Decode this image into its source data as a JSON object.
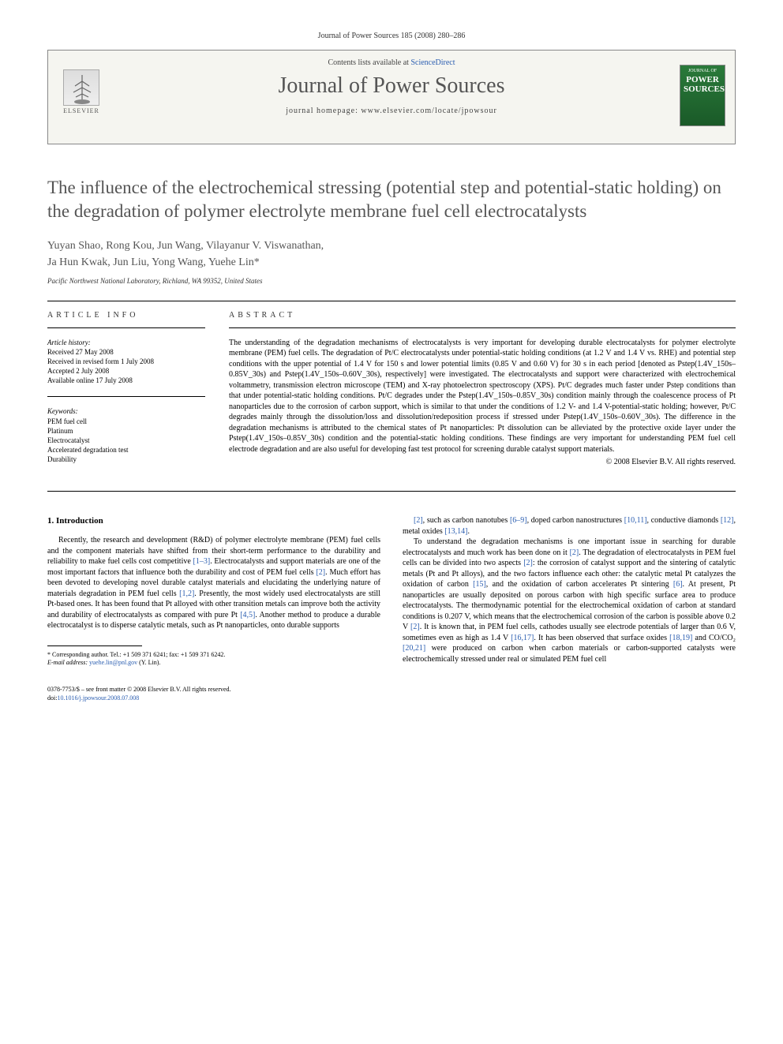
{
  "header": {
    "citation": "Journal of Power Sources 185 (2008) 280–286",
    "contents_prefix": "Contents lists available at ",
    "contents_link": "ScienceDirect",
    "journal_title": "Journal of Power Sources",
    "homepage_label": "journal homepage: www.elsevier.com/locate/jpowsour",
    "publisher_name": "ELSEVIER",
    "cover_label_top": "JOURNAL OF",
    "cover_label_main": "POWER SOURCES"
  },
  "article": {
    "title": "The influence of the electrochemical stressing (potential step and potential-static holding) on the degradation of polymer electrolyte membrane fuel cell electrocatalysts",
    "authors_line1": "Yuyan Shao, Rong Kou, Jun Wang, Vilayanur V. Viswanathan,",
    "authors_line2": "Ja Hun Kwak, Jun Liu, Yong Wang, Yuehe Lin*",
    "affiliation": "Pacific Northwest National Laboratory, Richland, WA 99352, United States"
  },
  "info": {
    "heading": "ARTICLE INFO",
    "history_label": "Article history:",
    "history": [
      "Received 27 May 2008",
      "Received in revised form 1 July 2008",
      "Accepted 2 July 2008",
      "Available online 17 July 2008"
    ],
    "keywords_label": "Keywords:",
    "keywords": [
      "PEM fuel cell",
      "Platinum",
      "Electrocatalyst",
      "Accelerated degradation test",
      "Durability"
    ]
  },
  "abstract": {
    "heading": "ABSTRACT",
    "text": "The understanding of the degradation mechanisms of electrocatalysts is very important for developing durable electrocatalysts for polymer electrolyte membrane (PEM) fuel cells. The degradation of Pt/C electrocatalysts under potential-static holding conditions (at 1.2 V and 1.4 V vs. RHE) and potential step conditions with the upper potential of 1.4 V for 150 s and lower potential limits (0.85 V and 0.60 V) for 30 s in each period [denoted as Pstep(1.4V_150s–0.85V_30s) and Pstep(1.4V_150s–0.60V_30s), respectively] were investigated. The electrocatalysts and support were characterized with electrochemical voltammetry, transmission electron microscope (TEM) and X-ray photoelectron spectroscopy (XPS). Pt/C degrades much faster under Pstep conditions than that under potential-static holding conditions. Pt/C degrades under the Pstep(1.4V_150s–0.85V_30s) condition mainly through the coalescence process of Pt nanoparticles due to the corrosion of carbon support, which is similar to that under the conditions of 1.2 V- and 1.4 V-potential-static holding; however, Pt/C degrades mainly through the dissolution/loss and dissolution/redeposition process if stressed under Pstep(1.4V_150s–0.60V_30s). The difference in the degradation mechanisms is attributed to the chemical states of Pt nanoparticles: Pt dissolution can be alleviated by the protective oxide layer under the Pstep(1.4V_150s–0.85V_30s) condition and the potential-static holding conditions. These findings are very important for understanding PEM fuel cell electrode degradation and are also useful for developing fast test protocol for screening durable catalyst support materials.",
    "copyright": "© 2008 Elsevier B.V. All rights reserved."
  },
  "body": {
    "section_heading": "1. Introduction",
    "left_paragraph": "Recently, the research and development (R&D) of polymer electrolyte membrane (PEM) fuel cells and the component materials have shifted from their short-term performance to the durability and reliability to make fuel cells cost competitive [1–3]. Electrocatalysts and support materials are one of the most important factors that influence both the durability and cost of PEM fuel cells [2]. Much effort has been devoted to developing novel durable catalyst materials and elucidating the underlying nature of materials degradation in PEM fuel cells [1,2]. Presently, the most widely used electrocatalysts are still Pt-based ones. It has been found that Pt alloyed with other transition metals can improve both the activity and durability of electrocatalysts as compared with pure Pt [4,5]. Another method to produce a durable electrocatalyst is to disperse catalytic metals, such as Pt nanoparticles, onto durable supports",
    "right_p1": "[2], such as carbon nanotubes [6–9], doped carbon nanostructures [10,11], conductive diamonds [12], metal oxides [13,14].",
    "right_p2": "To understand the degradation mechanisms is one important issue in searching for durable electrocatalysts and much work has been done on it [2]. The degradation of electrocatalysts in PEM fuel cells can be divided into two aspects [2]: the corrosion of catalyst support and the sintering of catalytic metals (Pt and Pt alloys), and the two factors influence each other: the catalytic metal Pt catalyzes the oxidation of carbon [15], and the oxidation of carbon accelerates Pt sintering [6]. At present, Pt nanoparticles are usually deposited on porous carbon with high specific surface area to produce electrocatalysts. The thermodynamic potential for the electrochemical oxidation of carbon at standard conditions is 0.207 V, which means that the electrochemical corrosion of the carbon is possible above 0.2 V [2]. It is known that, in PEM fuel cells, cathodes usually see electrode potentials of larger than 0.6 V, sometimes even as high as 1.4 V [16,17]. It has been observed that surface oxides [18,19] and CO/CO₂ [20,21] were produced on carbon when carbon materials or carbon-supported catalysts were electrochemically stressed under real or simulated PEM fuel cell"
  },
  "footnote": {
    "corr": "* Corresponding author. Tel.: +1 509 371 6241; fax: +1 509 371 6242.",
    "email_label": "E-mail address: ",
    "email": "yuehe.lin@pnl.gov",
    "email_suffix": " (Y. Lin)."
  },
  "footer": {
    "line1": "0378-7753/$ – see front matter © 2008 Elsevier B.V. All rights reserved.",
    "doi_prefix": "doi:",
    "doi": "10.1016/j.jpowsour.2008.07.008"
  },
  "colors": {
    "link": "#2a5db0",
    "text_muted": "#555555",
    "rule": "#000000"
  }
}
